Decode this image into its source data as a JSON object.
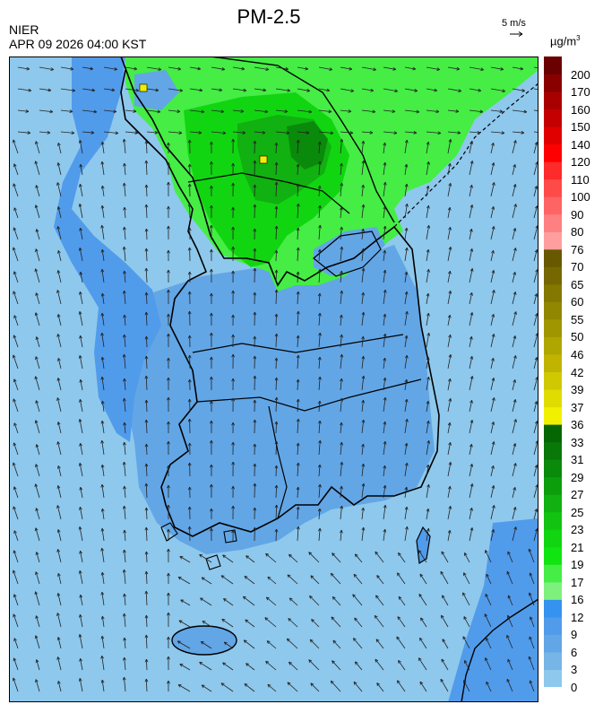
{
  "header": {
    "title": "PM-2.5",
    "org": "NIER",
    "timestamp": "APR 09 2026 04:00 KST",
    "wind_ref": "5 m/s",
    "unit_base": "µg/m",
    "unit_exp": "3"
  },
  "colorbar": {
    "ticks": [
      "0",
      "3",
      "6",
      "9",
      "12",
      "16",
      "17",
      "19",
      "21",
      "23",
      "25",
      "27",
      "29",
      "31",
      "33",
      "36",
      "37",
      "39",
      "42",
      "46",
      "50",
      "55",
      "60",
      "65",
      "70",
      "76",
      "80",
      "90",
      "100",
      "110",
      "120",
      "140",
      "150",
      "160",
      "170",
      "200"
    ],
    "colors": [
      "#8ec8ec",
      "#76b5e6",
      "#62a6e6",
      "#519beb",
      "#3592ef",
      "#7ef07e",
      "#45ed45",
      "#11e511",
      "#11d511",
      "#12c312",
      "#10b110",
      "#0c9e0c",
      "#0a8a0a",
      "#087808",
      "#046704",
      "#f0f000",
      "#e0dc00",
      "#d0c800",
      "#c0b400",
      "#b0a600",
      "#a09600",
      "#928700",
      "#847800",
      "#766800",
      "#685900",
      "#ff9e9e",
      "#ff8080",
      "#ff6464",
      "#ff4a4a",
      "#ff2a2a",
      "#ff0000",
      "#e00000",
      "#c40000",
      "#a80000",
      "#8a0000",
      "#6a0000"
    ]
  },
  "map_layers": {
    "sea_color": "#8ec8ec",
    "land_low_color": "#62a6e6",
    "mid_color": "#3592ef",
    "green_light": "#45ed45",
    "green_mid": "#11d511",
    "green_dark": "#0a8a0a",
    "hotspot_color": "#f0f000",
    "arrow_color": "#222222",
    "border_color": "#000000"
  }
}
